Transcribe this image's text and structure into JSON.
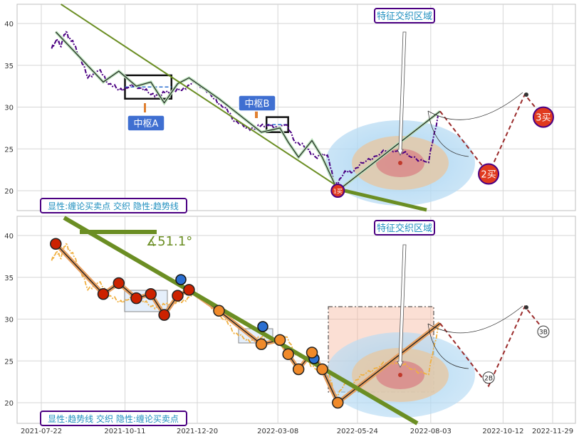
{
  "chart_data": [
    {
      "type": "line",
      "panel": "top",
      "ylim": [
        17.7,
        42.3
      ],
      "y_ticks": [
        20,
        25,
        30,
        35,
        40
      ],
      "x_ticks": [
        "2021-07-22",
        "2021-10-11",
        "2021-12-20",
        "2022-03-08",
        "2022-05-24",
        "2022-08-03",
        "2022-10-12",
        "2022-11-29"
      ],
      "grid": true,
      "price_series": {
        "x": [
          "2021-08-01",
          "2021-08-05",
          "2021-08-10",
          "2021-08-15",
          "2021-08-20",
          "2021-08-27",
          "2021-09-05",
          "2021-09-15",
          "2021-09-25",
          "2021-10-05",
          "2021-10-15",
          "2021-10-25",
          "2021-11-05",
          "2021-11-15",
          "2021-11-25",
          "2021-12-05",
          "2021-12-15",
          "2021-12-25",
          "2022-01-05",
          "2022-01-15",
          "2022-01-25",
          "2022-02-05",
          "2022-02-15",
          "2022-02-25",
          "2022-03-05",
          "2022-03-15",
          "2022-03-25",
          "2022-04-05",
          "2022-04-15",
          "2022-04-25",
          "2022-05-02",
          "2022-05-10",
          "2022-05-20",
          "2022-06-01",
          "2022-06-15",
          "2022-07-01",
          "2022-07-15",
          "2022-08-01",
          "2022-08-10"
        ],
        "y": [
          37,
          38,
          37.5,
          39,
          38,
          36.5,
          33.5,
          34.5,
          33,
          32,
          32.5,
          32.5,
          31.5,
          31.5,
          32,
          32,
          33,
          32.5,
          31,
          30,
          28.5,
          27.5,
          27.5,
          28,
          27.5,
          28,
          26,
          25,
          24,
          24.5,
          20.5,
          22,
          22.5,
          23.5,
          24.5,
          25,
          24,
          23.5,
          29
        ]
      },
      "stroke_series": {
        "x": [
          "2021-08-05",
          "2021-09-20",
          "2021-10-05",
          "2021-10-22",
          "2021-11-05",
          "2021-11-18",
          "2021-12-01",
          "2021-12-12",
          "2022-01-10",
          "2022-02-20",
          "2022-03-10",
          "2022-03-18",
          "2022-03-28",
          "2022-04-10",
          "2022-04-20",
          "2022-05-05",
          "2022-08-12"
        ],
        "y": [
          39,
          33,
          34.3,
          32.5,
          33,
          30.5,
          32.8,
          33.5,
          31,
          27,
          27.5,
          25.8,
          24,
          26,
          24,
          20,
          29.5
        ]
      },
      "forecast": {
        "x": [
          "2022-08-12",
          "2022-09-28",
          "2022-11-02",
          "2022-11-20"
        ],
        "y": [
          29.5,
          22,
          31.5,
          28.8
        ]
      },
      "trend_lines": [
        {
          "from": [
            "2021-08-10",
            42.3
          ],
          "to": [
            "2022-05-05",
            20.5
          ]
        },
        {
          "from": [
            "2022-05-01",
            20.3
          ],
          "to": [
            "2022-07-30",
            17.7
          ]
        }
      ],
      "zones": [
        {
          "label": "中枢A",
          "x": [
            "2021-10-11",
            "2021-11-25"
          ],
          "y": [
            31,
            33.8
          ]
        },
        {
          "label": "中枢B",
          "x": [
            "2022-02-25",
            "2022-03-18"
          ],
          "y": [
            27,
            28.8
          ]
        }
      ],
      "signals": [
        {
          "label": "1买",
          "x": "2022-05-05",
          "y": 20
        },
        {
          "label": "2买",
          "x": "2022-09-28",
          "y": 22
        },
        {
          "label": "3买",
          "x": "2022-11-20",
          "y": 28.8
        }
      ],
      "annotation": "特征交织区域",
      "legend": "显性:缠论买卖点 交织 隐性:趋势线"
    },
    {
      "type": "line",
      "panel": "bottom",
      "ylim": [
        17.7,
        42.3
      ],
      "y_ticks": [
        20,
        25,
        30,
        35,
        40
      ],
      "x_ticks": [
        "2021-07-22",
        "2021-10-11",
        "2021-12-20",
        "2022-03-08",
        "2022-05-24",
        "2022-08-03",
        "2022-10-12",
        "2022-11-29"
      ],
      "grid": true,
      "angle_label": "∡51.1°",
      "signals": [
        {
          "label": "2B",
          "x": "2022-09-28",
          "y": 23
        },
        {
          "label": "3B",
          "x": "2022-11-20",
          "y": 28.5
        }
      ],
      "annotation": "特征交织区域",
      "legend": "显性:趋势线 交织 隐性:缠论买卖点"
    }
  ]
}
